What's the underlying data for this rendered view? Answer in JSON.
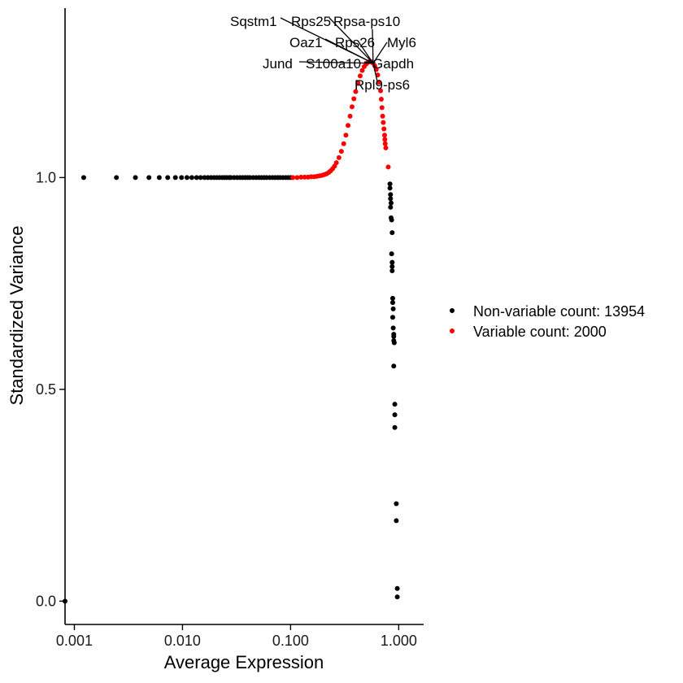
{
  "chart_data": {
    "type": "scatter",
    "xlabel": "Average Expression",
    "ylabel": "Standardized Variance",
    "x_scale": "log10",
    "xlim": [
      0.00082,
      1.7
    ],
    "ylim": [
      -0.055,
      1.4
    ],
    "x_ticks": [
      {
        "value": 0.001,
        "label": "0.001"
      },
      {
        "value": 0.01,
        "label": "0.010"
      },
      {
        "value": 0.1,
        "label": "0.100"
      },
      {
        "value": 1.0,
        "label": "1.000"
      }
    ],
    "y_ticks": [
      {
        "value": 0.0,
        "label": "0.0"
      },
      {
        "value": 0.5,
        "label": "0.5"
      },
      {
        "value": 1.0,
        "label": "1.0"
      }
    ],
    "grid": false,
    "legend_position": "right",
    "series": [
      {
        "name": "Non-variable count: 13954",
        "color": "#000000",
        "points": [
          [
            0.00082,
            0.0
          ],
          [
            0.00122,
            1.0
          ],
          [
            0.00245,
            1.0
          ],
          [
            0.00367,
            1.0
          ],
          [
            0.0049,
            1.0
          ],
          [
            0.0061,
            1.0
          ],
          [
            0.0073,
            1.0
          ],
          [
            0.0086,
            1.0
          ],
          [
            0.0098,
            1.0
          ],
          [
            0.011,
            1.0
          ],
          [
            0.0122,
            1.0
          ],
          [
            0.0135,
            1.0
          ],
          [
            0.0147,
            1.0
          ],
          [
            0.016,
            1.0
          ],
          [
            0.0172,
            1.0
          ],
          [
            0.0184,
            1.0
          ],
          [
            0.0196,
            1.0
          ],
          [
            0.0208,
            1.0
          ],
          [
            0.022,
            1.0
          ],
          [
            0.0233,
            1.0
          ],
          [
            0.0245,
            1.0
          ],
          [
            0.0257,
            1.0
          ],
          [
            0.027,
            1.0
          ],
          [
            0.028,
            1.0
          ],
          [
            0.03,
            1.0
          ],
          [
            0.032,
            1.0
          ],
          [
            0.034,
            1.0
          ],
          [
            0.036,
            1.0
          ],
          [
            0.038,
            1.0
          ],
          [
            0.04,
            1.0
          ],
          [
            0.042,
            1.0
          ],
          [
            0.045,
            1.0
          ],
          [
            0.048,
            1.0
          ],
          [
            0.051,
            1.0
          ],
          [
            0.054,
            1.0
          ],
          [
            0.057,
            1.0
          ],
          [
            0.06,
            1.0
          ],
          [
            0.064,
            1.0
          ],
          [
            0.068,
            1.0
          ],
          [
            0.072,
            1.0
          ],
          [
            0.076,
            1.0
          ],
          [
            0.08,
            1.0
          ],
          [
            0.085,
            1.0
          ],
          [
            0.09,
            1.0
          ],
          [
            0.095,
            1.0
          ],
          [
            0.1,
            1.0
          ],
          [
            0.83,
            0.985
          ],
          [
            0.83,
            0.975
          ],
          [
            0.84,
            0.96
          ],
          [
            0.84,
            0.95
          ],
          [
            0.85,
            0.94
          ],
          [
            0.84,
            0.93
          ],
          [
            0.85,
            0.905
          ],
          [
            0.86,
            0.9
          ],
          [
            0.87,
            0.87
          ],
          [
            0.86,
            0.82
          ],
          [
            0.87,
            0.8
          ],
          [
            0.87,
            0.79
          ],
          [
            0.87,
            0.78
          ],
          [
            0.88,
            0.715
          ],
          [
            0.88,
            0.705
          ],
          [
            0.89,
            0.69
          ],
          [
            0.88,
            0.67
          ],
          [
            0.89,
            0.645
          ],
          [
            0.9,
            0.63
          ],
          [
            0.9,
            0.625
          ],
          [
            0.9,
            0.615
          ],
          [
            0.91,
            0.61
          ],
          [
            0.9,
            0.555
          ],
          [
            0.92,
            0.465
          ],
          [
            0.92,
            0.44
          ],
          [
            0.92,
            0.41
          ],
          [
            0.95,
            0.23
          ],
          [
            0.95,
            0.19
          ],
          [
            0.97,
            0.03
          ],
          [
            0.97,
            0.01
          ]
        ]
      },
      {
        "name": "Variable count: 2000",
        "color": "#ff0000",
        "points": [
          [
            0.105,
            1.0
          ],
          [
            0.115,
            1.0
          ],
          [
            0.125,
            1.001
          ],
          [
            0.135,
            1.001
          ],
          [
            0.145,
            1.001
          ],
          [
            0.155,
            1.002
          ],
          [
            0.165,
            1.002
          ],
          [
            0.175,
            1.003
          ],
          [
            0.185,
            1.004
          ],
          [
            0.195,
            1.005
          ],
          [
            0.205,
            1.007
          ],
          [
            0.215,
            1.009
          ],
          [
            0.225,
            1.012
          ],
          [
            0.235,
            1.016
          ],
          [
            0.245,
            1.021
          ],
          [
            0.255,
            1.027
          ],
          [
            0.265,
            1.035
          ],
          [
            0.28,
            1.047
          ],
          [
            0.295,
            1.062
          ],
          [
            0.31,
            1.08
          ],
          [
            0.325,
            1.1
          ],
          [
            0.34,
            1.123
          ],
          [
            0.355,
            1.145
          ],
          [
            0.37,
            1.167
          ],
          [
            0.385,
            1.186
          ],
          [
            0.4,
            1.203
          ],
          [
            0.42,
            1.223
          ],
          [
            0.44,
            1.24
          ],
          [
            0.46,
            1.253
          ],
          [
            0.48,
            1.262
          ],
          [
            0.5,
            1.268
          ],
          [
            0.52,
            1.272
          ],
          [
            0.54,
            1.274
          ],
          [
            0.56,
            1.273
          ],
          [
            0.58,
            1.27
          ],
          [
            0.6,
            1.264
          ],
          [
            0.62,
            1.255
          ],
          [
            0.64,
            1.242
          ],
          [
            0.66,
            1.225
          ],
          [
            0.68,
            1.205
          ],
          [
            0.69,
            1.185
          ],
          [
            0.7,
            1.165
          ],
          [
            0.71,
            1.145
          ],
          [
            0.72,
            1.13
          ],
          [
            0.73,
            1.115
          ],
          [
            0.74,
            1.1
          ],
          [
            0.745,
            1.09
          ],
          [
            0.75,
            1.08
          ],
          [
            0.76,
            1.07
          ],
          [
            0.8,
            1.025
          ]
        ]
      }
    ],
    "labeled_points": [
      {
        "label": "Sqstm1",
        "x": 0.58,
        "y": 1.27
      },
      {
        "label": "Rps25",
        "x": 0.58,
        "y": 1.27
      },
      {
        "label": "Rpsa-ps10",
        "x": 0.58,
        "y": 1.27
      },
      {
        "label": "Oaz1",
        "x": 0.58,
        "y": 1.27
      },
      {
        "label": "Rps26",
        "x": 0.58,
        "y": 1.27
      },
      {
        "label": "Myl6",
        "x": 0.58,
        "y": 1.27
      },
      {
        "label": "Jund",
        "x": 0.58,
        "y": 1.27
      },
      {
        "label": "S100a10",
        "x": 0.58,
        "y": 1.27
      },
      {
        "label": "Gapdh",
        "x": 0.58,
        "y": 1.27
      },
      {
        "label": "Rpl9-ps6",
        "x": 0.58,
        "y": 1.27
      }
    ]
  }
}
